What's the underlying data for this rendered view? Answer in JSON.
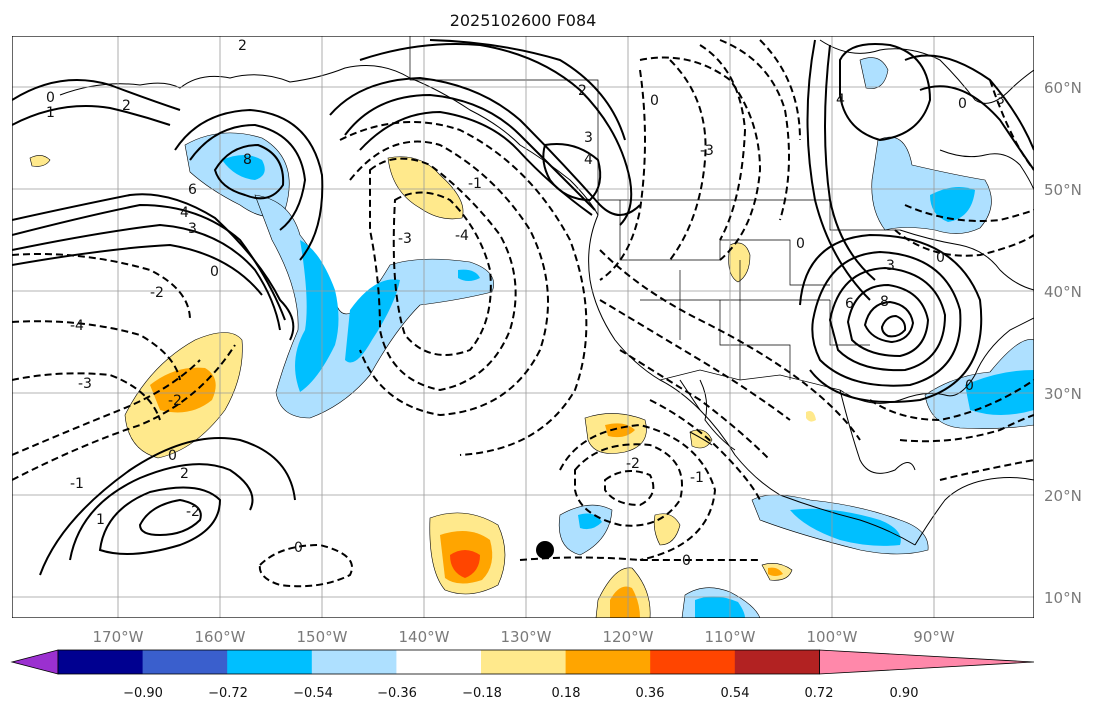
{
  "title": "2025102600 F084",
  "lat_labels": [
    "60°N",
    "50°N",
    "40°N",
    "30°N",
    "20°N",
    "10°N"
  ],
  "lon_labels": [
    "170°W",
    "160°W",
    "150°W",
    "140°W",
    "130°W",
    "120°W",
    "110°W",
    "100°W",
    "90°W"
  ],
  "colorbar": {
    "ticks": [
      "−0.90",
      "−0.72",
      "−0.54",
      "−0.36",
      "−0.18",
      "0.18",
      "0.36",
      "0.54",
      "0.72",
      "0.90"
    ],
    "colors": [
      "#9b30d0",
      "#000090",
      "#3a5fcd",
      "#00bfff",
      "#aee0ff",
      "#ffffff",
      "#ffe98c",
      "#ffa500",
      "#ff4500",
      "#b22222",
      "#ff88aa"
    ]
  },
  "contour_labels": [
    "0",
    "1",
    "2",
    "-1",
    "-2",
    "-3",
    "-4",
    "3",
    "4",
    "6",
    "8",
    "0",
    "2",
    "-2",
    "-1",
    "0",
    "2",
    "1",
    "-2",
    "-3",
    "-4",
    "6",
    "8",
    "3",
    "0",
    "-1",
    "-2",
    "-3"
  ],
  "marker": "filled-circle"
}
